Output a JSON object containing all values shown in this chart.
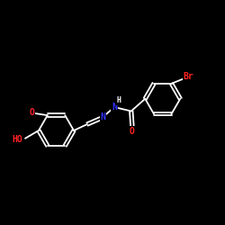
{
  "background_color": "#000000",
  "bond_color": "#ffffff",
  "atom_colors": {
    "N": "#3333ff",
    "O": "#ff2222",
    "Br": "#ff2222"
  },
  "lw": 1.3,
  "fs": 7.0,
  "r_ring": 0.78
}
